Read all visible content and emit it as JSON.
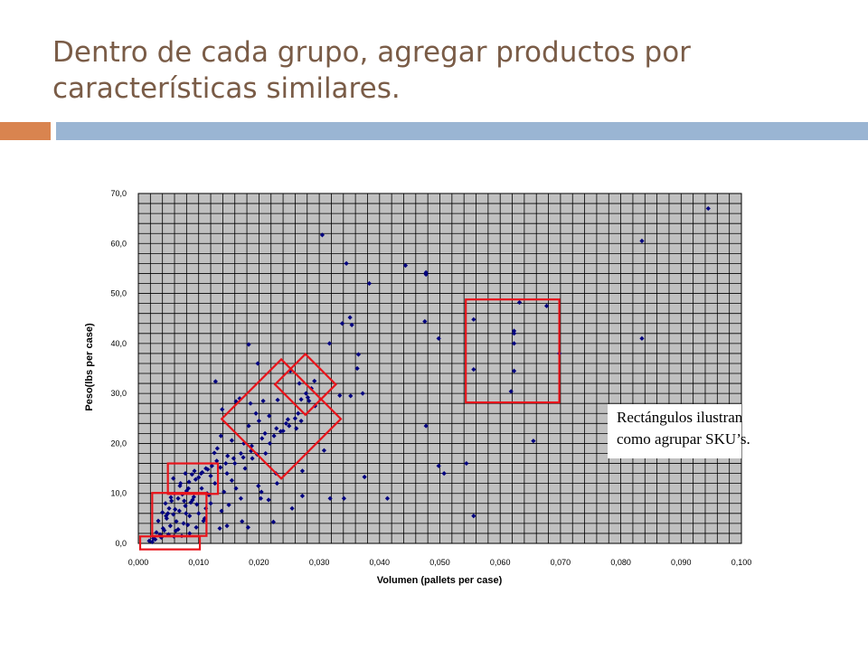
{
  "slide": {
    "title_lines": [
      "Dentro de cada grupo, agregar productos por",
      "características similares."
    ],
    "accent_left_color": "#d9844f",
    "accent_right_color": "#9ab5d3",
    "title_color": "#7a5c47"
  },
  "annotation": {
    "lines": [
      "Rectángulos ilustran",
      "como agrupar SKU’s."
    ]
  },
  "chart_data": {
    "type": "scatter",
    "xlabel": "Volumen (pallets per case)",
    "ylabel": "Peso(lbs per case)",
    "xlim": [
      0,
      0.1
    ],
    "ylim": [
      0,
      70
    ],
    "x_ticks": [
      "0,000",
      "0,010",
      "0,020",
      "0,030",
      "0,040",
      "0,050",
      "0,060",
      "0,070",
      "0,080",
      "0,090",
      "0,100"
    ],
    "y_ticks": [
      "0,0",
      "10,0",
      "20,0",
      "30,0",
      "40,0",
      "50,0",
      "60,0",
      "70,0"
    ],
    "plot_background": "#c0c0c0",
    "grid": true,
    "marker_color": "#000080",
    "highlight_color": "#e8141b",
    "points": [
      [
        0.0945,
        67.0
      ],
      [
        0.0835,
        60.5
      ],
      [
        0.0835,
        41.0
      ],
      [
        0.0305,
        61.7
      ],
      [
        0.0345,
        56.0
      ],
      [
        0.0443,
        55.6
      ],
      [
        0.0477,
        54.2
      ],
      [
        0.0477,
        53.8
      ],
      [
        0.0383,
        52.0
      ],
      [
        0.0632,
        48.2
      ],
      [
        0.0677,
        47.5
      ],
      [
        0.0556,
        44.8
      ],
      [
        0.0475,
        44.4
      ],
      [
        0.0351,
        45.2
      ],
      [
        0.0338,
        44.0
      ],
      [
        0.0354,
        43.7
      ],
      [
        0.0623,
        42.5
      ],
      [
        0.0623,
        42.0
      ],
      [
        0.0623,
        40.0
      ],
      [
        0.0698,
        38.0
      ],
      [
        0.0623,
        34.5
      ],
      [
        0.0556,
        34.8
      ],
      [
        0.0618,
        30.4
      ],
      [
        0.0655,
        20.5
      ],
      [
        0.0544,
        16.0
      ],
      [
        0.0498,
        15.5
      ],
      [
        0.0507,
        14.0
      ],
      [
        0.0556,
        5.5
      ],
      [
        0.0477,
        23.5
      ],
      [
        0.0498,
        41.0
      ],
      [
        0.0413,
        9.0
      ],
      [
        0.0341,
        9.0
      ],
      [
        0.0318,
        9.0
      ],
      [
        0.0365,
        37.8
      ],
      [
        0.0363,
        35.0
      ],
      [
        0.0372,
        30.0
      ],
      [
        0.0352,
        29.5
      ],
      [
        0.0334,
        29.6
      ],
      [
        0.0317,
        40.0
      ],
      [
        0.0375,
        13.3
      ],
      [
        0.0308,
        18.6
      ],
      [
        0.0272,
        9.5
      ],
      [
        0.0272,
        14.5
      ],
      [
        0.0255,
        7.0
      ],
      [
        0.0224,
        4.3
      ],
      [
        0.0183,
        39.8
      ],
      [
        0.0198,
        36.0
      ],
      [
        0.0252,
        34.5
      ],
      [
        0.0267,
        32.0
      ],
      [
        0.0287,
        31.0
      ],
      [
        0.0278,
        30.0
      ],
      [
        0.0283,
        28.5
      ],
      [
        0.027,
        28.8
      ],
      [
        0.0293,
        27.5
      ],
      [
        0.026,
        25.0
      ],
      [
        0.0245,
        24.0
      ],
      [
        0.027,
        24.5
      ],
      [
        0.0262,
        23.0
      ],
      [
        0.0236,
        22.4
      ],
      [
        0.0225,
        21.5
      ],
      [
        0.0231,
        28.7
      ],
      [
        0.0207,
        28.5
      ],
      [
        0.0186,
        28.0
      ],
      [
        0.0195,
        26.0
      ],
      [
        0.0183,
        23.5
      ],
      [
        0.0162,
        28.4
      ],
      [
        0.0168,
        29.0
      ],
      [
        0.0128,
        32.4
      ],
      [
        0.0139,
        26.8
      ],
      [
        0.0137,
        21.5
      ],
      [
        0.0155,
        20.6
      ],
      [
        0.0175,
        20.0
      ],
      [
        0.0187,
        18.5
      ],
      [
        0.0174,
        17.2
      ],
      [
        0.016,
        16.0
      ],
      [
        0.0148,
        17.5
      ],
      [
        0.0131,
        19.0
      ],
      [
        0.0126,
        18.1
      ],
      [
        0.0136,
        15.2
      ],
      [
        0.0112,
        15.0
      ],
      [
        0.0106,
        14.2
      ],
      [
        0.0093,
        14.5
      ],
      [
        0.0078,
        14.0
      ],
      [
        0.0089,
        13.8
      ],
      [
        0.01,
        13.2
      ],
      [
        0.012,
        13.5
      ],
      [
        0.0084,
        12.3
      ],
      [
        0.0069,
        11.5
      ],
      [
        0.0105,
        11.0
      ],
      [
        0.008,
        10.5
      ],
      [
        0.006,
        10.0
      ],
      [
        0.0073,
        9.8
      ],
      [
        0.0066,
        9.0
      ],
      [
        0.009,
        8.7
      ],
      [
        0.0055,
        8.5
      ],
      [
        0.0045,
        8.0
      ],
      [
        0.0078,
        7.5
      ],
      [
        0.0051,
        7.0
      ],
      [
        0.0068,
        6.5
      ],
      [
        0.004,
        6.2
      ],
      [
        0.0058,
        5.8
      ],
      [
        0.0085,
        5.5
      ],
      [
        0.0047,
        5.0
      ],
      [
        0.0063,
        4.4
      ],
      [
        0.0033,
        4.5
      ],
      [
        0.0075,
        4.0
      ],
      [
        0.0053,
        3.5
      ],
      [
        0.0096,
        3.2
      ],
      [
        0.0041,
        3.0
      ],
      [
        0.0062,
        2.5
      ],
      [
        0.0085,
        2.0
      ],
      [
        0.0108,
        4.5
      ],
      [
        0.003,
        2.2
      ],
      [
        0.005,
        1.8
      ],
      [
        0.0072,
        1.5
      ],
      [
        0.0025,
        1.0
      ],
      [
        0.0038,
        1.2
      ],
      [
        0.0018,
        0.5
      ],
      [
        0.0023,
        0.3
      ],
      [
        0.0117,
        9.7
      ],
      [
        0.0138,
        6.5
      ],
      [
        0.015,
        7.7
      ],
      [
        0.0147,
        3.5
      ],
      [
        0.0172,
        4.4
      ],
      [
        0.0182,
        3.2
      ],
      [
        0.0135,
        3.0
      ],
      [
        0.0177,
        15.0
      ],
      [
        0.0199,
        11.5
      ],
      [
        0.0204,
        10.3
      ],
      [
        0.0203,
        9.0
      ],
      [
        0.0216,
        8.7
      ],
      [
        0.0228,
        14.0
      ],
      [
        0.023,
        12.0
      ],
      [
        0.0189,
        17.0
      ],
      [
        0.0197,
        17.8
      ],
      [
        0.0211,
        18.0
      ],
      [
        0.0218,
        20.0
      ],
      [
        0.021,
        22.0
      ],
      [
        0.02,
        24.5
      ],
      [
        0.0217,
        25.5
      ],
      [
        0.025,
        23.5
      ],
      [
        0.024,
        22.5
      ],
      [
        0.0147,
        14.0
      ],
      [
        0.0155,
        12.6
      ],
      [
        0.0162,
        11.0
      ],
      [
        0.017,
        9.0
      ],
      [
        0.012,
        8.0
      ],
      [
        0.0112,
        7.0
      ],
      [
        0.01,
        6.0
      ],
      [
        0.011,
        5.0
      ],
      [
        0.0058,
        13.0
      ],
      [
        0.007,
        12.0
      ],
      [
        0.0095,
        12.8
      ],
      [
        0.0127,
        12.0
      ],
      [
        0.0142,
        10.3
      ],
      [
        0.0076,
        8.5
      ],
      [
        0.0087,
        8.2
      ],
      [
        0.0097,
        7.8
      ],
      [
        0.0061,
        6.8
      ],
      [
        0.0046,
        5.5
      ],
      [
        0.0082,
        3.7
      ],
      [
        0.0066,
        2.8
      ],
      [
        0.0043,
        2.6
      ],
      [
        0.0036,
        1.8
      ],
      [
        0.0059,
        1.4
      ],
      [
        0.0028,
        0.8
      ],
      [
        0.0292,
        32.5
      ],
      [
        0.0281,
        29.2
      ],
      [
        0.0265,
        26.0
      ],
      [
        0.0248,
        24.8
      ],
      [
        0.0229,
        23.0
      ],
      [
        0.0205,
        21.0
      ],
      [
        0.0188,
        19.5
      ],
      [
        0.017,
        18.0
      ],
      [
        0.0158,
        17.0
      ],
      [
        0.0145,
        16.0
      ],
      [
        0.013,
        16.5
      ],
      [
        0.0122,
        15.5
      ],
      [
        0.0115,
        14.8
      ],
      [
        0.0104,
        14.0
      ],
      [
        0.0083,
        11.0
      ],
      [
        0.0054,
        9.2
      ],
      [
        0.0092,
        9.3
      ],
      [
        0.0114,
        10.0
      ],
      [
        0.0049,
        6.0
      ],
      [
        0.0079,
        6.0
      ]
    ],
    "highlight_rects": [
      [
        0.0543,
        28.2,
        0.0698,
        48.8
      ],
      [
        0.0023,
        1.5,
        0.0113,
        10.1
      ],
      [
        0.0049,
        9.9,
        0.0132,
        16.0
      ],
      [
        0.0003,
        -1.2,
        0.0102,
        1.4
      ]
    ],
    "highlight_diamonds": [
      [
        0.0237,
        24.9,
        0.0112,
        26.5
      ],
      [
        0.0277,
        31.8,
        0.0112,
        12.6
      ]
    ]
  }
}
